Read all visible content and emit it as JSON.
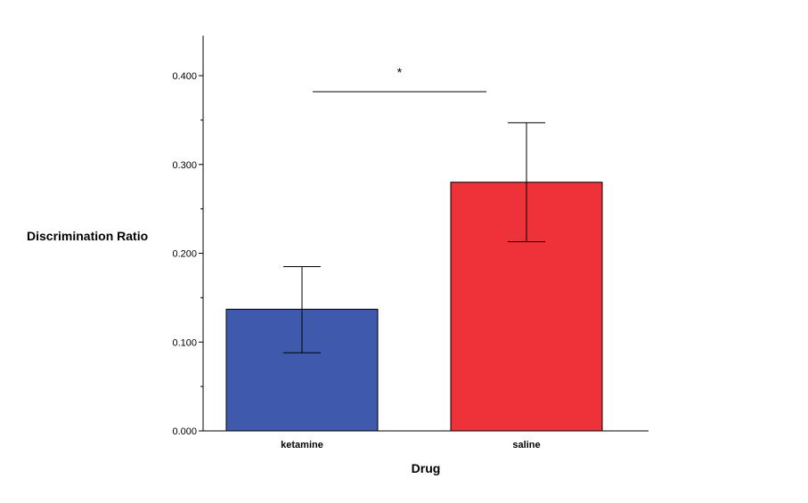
{
  "chart_data": {
    "type": "bar",
    "categories": [
      "ketamine",
      "saline"
    ],
    "values": [
      0.137,
      0.28
    ],
    "error_bars": [
      {
        "low": 0.088,
        "high": 0.185
      },
      {
        "low": 0.213,
        "high": 0.347
      }
    ],
    "colors": [
      "#3f5aac",
      "#ef3139"
    ],
    "xlabel": "Drug",
    "ylabel": "Discrimination Ratio",
    "ylim": [
      0,
      0.44
    ],
    "yticks": [
      0.0,
      0.1,
      0.2,
      0.3,
      0.4
    ],
    "ytick_labels": [
      "0.000",
      "0.100",
      "0.200",
      "0.300",
      "0.400"
    ],
    "significance": {
      "label": "*",
      "between": [
        "ketamine",
        "saline"
      ],
      "y": 0.382
    },
    "grid": false,
    "legend": "none"
  }
}
